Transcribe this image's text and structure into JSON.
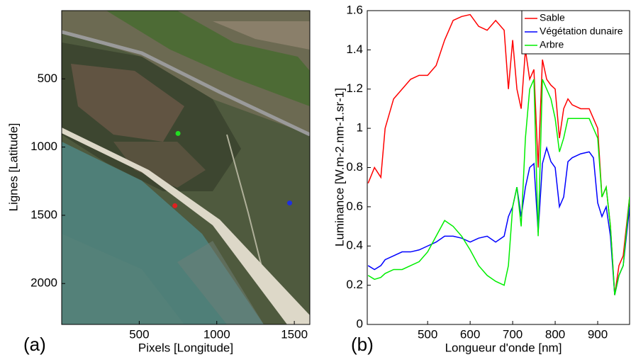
{
  "chart_data": [
    {
      "type": "scatter",
      "panel_label": "(a)",
      "x_label": "Pixels [Longitude]",
      "y_label": "Lignes [Latitude]",
      "xlim": [
        0,
        1600
      ],
      "ylim": [
        2300,
        0
      ],
      "xticks": [
        500,
        1000,
        1500
      ],
      "yticks": [
        500,
        1000,
        1500,
        2000
      ],
      "x": [
        750,
        1470,
        730
      ],
      "y": [
        900,
        1410,
        1430
      ],
      "colors": [
        "#22dd22",
        "#1f2fe0",
        "#e02020"
      ]
    },
    {
      "type": "line",
      "panel_label": "(b)",
      "x_label": "Longueur d'onde [nm]",
      "y_label": "Luminance [W.m-2.nm-1.sr-1]",
      "xlim": [
        358,
        975
      ],
      "ylim": [
        0,
        1.6
      ],
      "xticks": [
        500,
        600,
        700,
        800,
        900
      ],
      "yticks": [
        0,
        0.2,
        0.4,
        0.6,
        0.8,
        1,
        1.2,
        1.4,
        1.6
      ],
      "legend": "top-right",
      "x": [
        360,
        375,
        390,
        400,
        420,
        440,
        460,
        480,
        500,
        520,
        540,
        560,
        580,
        600,
        620,
        640,
        660,
        680,
        690,
        700,
        710,
        720,
        730,
        740,
        750,
        760,
        770,
        780,
        790,
        800,
        810,
        820,
        830,
        840,
        860,
        880,
        890,
        900,
        910,
        920,
        930,
        940,
        950,
        960,
        975
      ],
      "series": [
        {
          "name": "Sable",
          "color": "#ff0000",
          "values": [
            0.72,
            0.8,
            0.75,
            1.0,
            1.15,
            1.2,
            1.25,
            1.27,
            1.27,
            1.32,
            1.45,
            1.55,
            1.57,
            1.58,
            1.52,
            1.5,
            1.55,
            1.5,
            1.2,
            1.45,
            1.2,
            1.1,
            1.4,
            1.25,
            1.3,
            0.8,
            1.35,
            1.25,
            1.22,
            1.2,
            0.95,
            1.1,
            1.15,
            1.12,
            1.1,
            1.1,
            1.05,
            1.0,
            0.65,
            0.7,
            0.5,
            0.15,
            0.3,
            0.35,
            0.65
          ]
        },
        {
          "name": "Végétation dunaire",
          "color": "#0000ff",
          "values": [
            0.3,
            0.28,
            0.3,
            0.33,
            0.35,
            0.37,
            0.37,
            0.38,
            0.4,
            0.42,
            0.45,
            0.45,
            0.44,
            0.42,
            0.44,
            0.45,
            0.42,
            0.45,
            0.55,
            0.6,
            0.7,
            0.55,
            0.7,
            0.8,
            0.82,
            0.47,
            0.82,
            0.9,
            0.83,
            0.8,
            0.6,
            0.65,
            0.83,
            0.85,
            0.87,
            0.88,
            0.85,
            0.62,
            0.55,
            0.6,
            0.45,
            0.15,
            0.25,
            0.3,
            0.6
          ]
        },
        {
          "name": "Arbre",
          "color": "#00ee00",
          "values": [
            0.25,
            0.23,
            0.24,
            0.26,
            0.28,
            0.28,
            0.3,
            0.32,
            0.37,
            0.45,
            0.53,
            0.5,
            0.45,
            0.38,
            0.3,
            0.25,
            0.22,
            0.2,
            0.3,
            0.6,
            0.7,
            0.5,
            0.95,
            1.2,
            1.25,
            0.45,
            1.25,
            1.2,
            1.15,
            1.05,
            0.88,
            0.95,
            1.05,
            1.05,
            1.05,
            1.05,
            1.0,
            0.95,
            0.65,
            0.7,
            0.5,
            0.15,
            0.25,
            0.3,
            0.65
          ]
        }
      ]
    }
  ]
}
